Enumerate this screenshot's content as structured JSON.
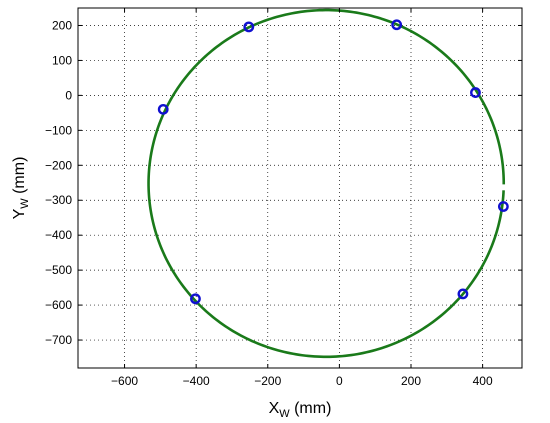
{
  "chart_data": {
    "type": "scatter",
    "xlabel": "X",
    "xlabel_sub": "W",
    "xlabel_unit": " (mm)",
    "ylabel": "Y",
    "ylabel_sub": "W",
    "ylabel_unit": " (mm)",
    "xlim": [
      -730,
      510
    ],
    "ylim": [
      -780,
      250
    ],
    "xticks": [
      -600,
      -400,
      -200,
      0,
      200,
      400
    ],
    "yticks": [
      200,
      100,
      0,
      -100,
      -200,
      -300,
      -400,
      -500,
      -600,
      -700
    ],
    "grid": true,
    "grid_style": "dotted",
    "circle": {
      "cx": -37,
      "cy": -252,
      "r": 496,
      "color": "#1a7a1a",
      "gap_near_angle_deg": 2
    },
    "marker_color": "#1010d0",
    "points": [
      {
        "x": -253,
        "y": 196
      },
      {
        "x": 160,
        "y": 202
      },
      {
        "x": 380,
        "y": 8
      },
      {
        "x": -492,
        "y": -40
      },
      {
        "x": 458,
        "y": -318
      },
      {
        "x": -402,
        "y": -582
      },
      {
        "x": 345,
        "y": -568
      }
    ]
  }
}
